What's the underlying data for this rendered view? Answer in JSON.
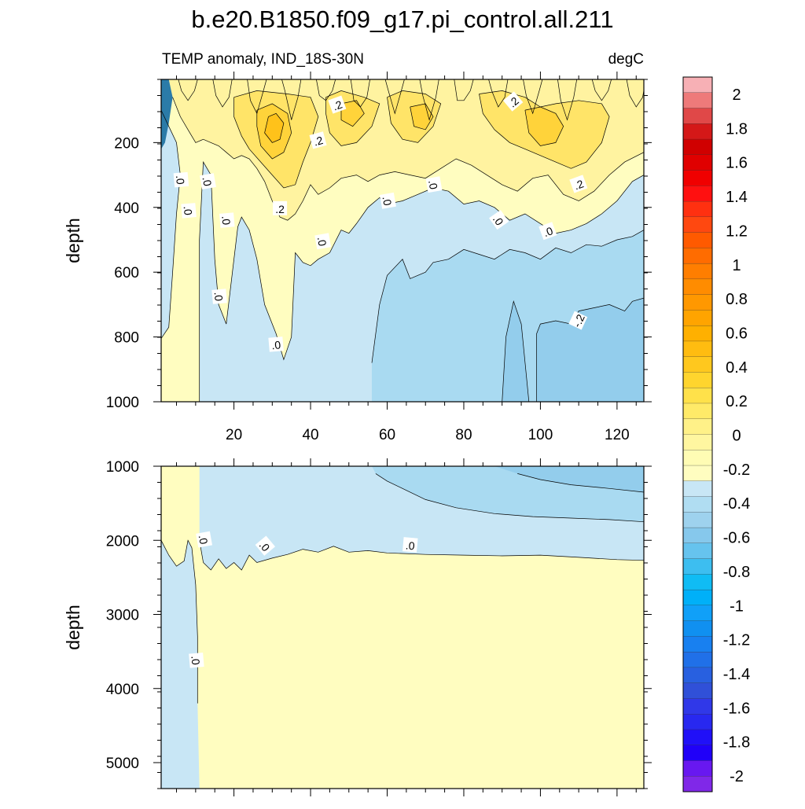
{
  "title": "b.e20.B1850.f09_g17.pi_control.all.211",
  "chart_data": [
    {
      "type": "contour",
      "panel": "upper",
      "left_string": "TEMP anomaly, IND_18S-30N",
      "right_string": "degC",
      "ylabel": "depth",
      "xlim": [
        1,
        127
      ],
      "ylim": [
        1000,
        5
      ],
      "x_ticks": [
        20,
        40,
        60,
        80,
        100,
        120
      ],
      "y_ticks": [
        200,
        400,
        600,
        800,
        1000
      ],
      "contour_labels": [
        {
          "text": ".2",
          "x": 47,
          "depth": 85,
          "rot": -20
        },
        {
          "text": ".2",
          "x": 93,
          "depth": 75,
          "rot": -40
        },
        {
          "text": ".2",
          "x": 42,
          "depth": 195,
          "rot": -15
        },
        {
          "text": ".2",
          "x": 32,
          "depth": 405,
          "rot": 0
        },
        {
          "text": ".2",
          "x": 110,
          "depth": 330,
          "rot": -20
        },
        {
          "text": ".0",
          "x": 6,
          "depth": 315,
          "rot": 85
        },
        {
          "text": ".0",
          "x": 13,
          "depth": 320,
          "rot": 80
        },
        {
          "text": ".0",
          "x": 8,
          "depth": 410,
          "rot": 85
        },
        {
          "text": ".0",
          "x": 18,
          "depth": 440,
          "rot": 85
        },
        {
          "text": ".0",
          "x": 43,
          "depth": 505,
          "rot": 80
        },
        {
          "text": ".0",
          "x": 60,
          "depth": 380,
          "rot": 80
        },
        {
          "text": ".0",
          "x": 72,
          "depth": 330,
          "rot": 80
        },
        {
          "text": ".0",
          "x": 89,
          "depth": 440,
          "rot": 55
        },
        {
          "text": ".0",
          "x": 102,
          "depth": 475,
          "rot": -20
        },
        {
          "text": ".0",
          "x": 16,
          "depth": 675,
          "rot": 85
        },
        {
          "text": ".0",
          "x": 31,
          "depth": 825,
          "rot": -5
        },
        {
          "text": "-.2",
          "x": 110,
          "depth": 750,
          "rot": -65
        }
      ]
    },
    {
      "type": "contour",
      "panel": "lower",
      "ylabel": "depth",
      "xlim": [
        1,
        127
      ],
      "ylim": [
        5350,
        1000
      ],
      "y_ticks": [
        1000,
        2000,
        3000,
        4000,
        5000
      ],
      "contour_labels": [
        {
          "text": ".0",
          "x": 12,
          "depth": 1990,
          "rot": 80
        },
        {
          "text": ".0",
          "x": 28,
          "depth": 2080,
          "rot": 50
        },
        {
          "text": ".0",
          "x": 66,
          "depth": 2070,
          "rot": 5
        },
        {
          "text": ".0",
          "x": 10,
          "depth": 3620,
          "rot": 85
        }
      ]
    }
  ],
  "colorbar": {
    "labels": [
      "2",
      "1.8",
      "1.6",
      "1.4",
      "1.2",
      "1",
      "0.8",
      "0.6",
      "0.4",
      "0.2",
      "0",
      "-0.2",
      "-0.4",
      "-0.6",
      "-0.8",
      "-1",
      "-1.2",
      "-1.4",
      "-1.6",
      "-1.8",
      "-2"
    ],
    "colors": [
      "#F7B0B5",
      "#EE7A7A",
      "#E04848",
      "#D41818",
      "#D00000",
      "#E00000",
      "#F00000",
      "#FF1010",
      "#FF3010",
      "#FF4810",
      "#FF5A00",
      "#FF6C00",
      "#FF7E00",
      "#FF8C00",
      "#FF9800",
      "#FFA400",
      "#FFB000",
      "#FFBC10",
      "#FFC81E",
      "#FFD52E",
      "#FFE14A",
      "#FFEA68",
      "#FFF188",
      "#FFF6A0",
      "#FFFCB4",
      "#FFFDC0",
      "#C8E6F5",
      "#B0DDF2",
      "#9ED2EE",
      "#86C8EC",
      "#66C3EE",
      "#3DBEF0",
      "#10BCF4",
      "#00B0F8",
      "#10A0F8",
      "#1090F0",
      "#1880F0",
      "#2070E8",
      "#2860E0",
      "#3050D8",
      "#3038E8",
      "#2828F0",
      "#2010F8",
      "#2000F8",
      "#6818F0",
      "#8028E8"
    ]
  },
  "palette": {
    "pos1": "#FFFDC0",
    "pos2": "#FFF3A0",
    "pos3": "#FFE468",
    "pos4": "#FFD33A",
    "pos5": "#FFC21A",
    "neg1": "#C8E6F5",
    "neg2": "#A9DAF1",
    "neg3": "#93CDEC",
    "deep": "#2B7BA8"
  }
}
